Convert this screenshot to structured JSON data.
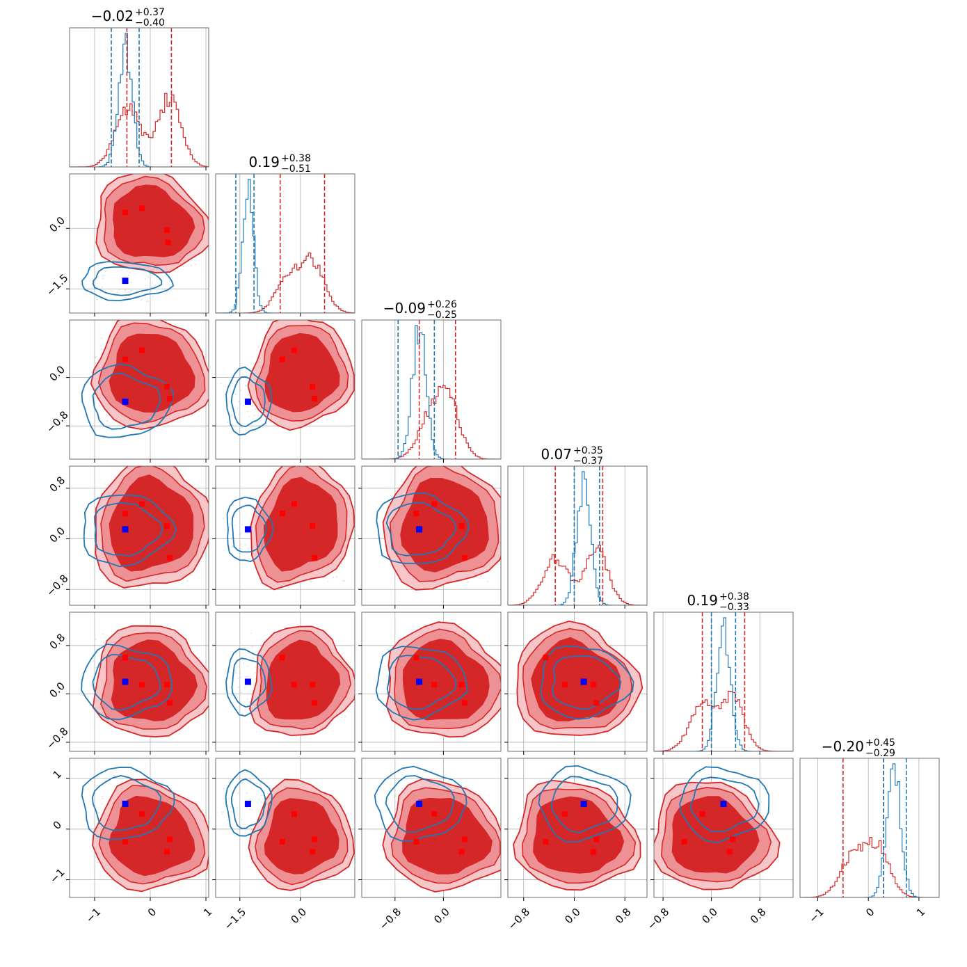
{
  "chart_data": {
    "type": "corner",
    "parameters": 6,
    "grid": true,
    "colors": {
      "primary": "#d62728",
      "secondary": "#1f77b4",
      "primary_marker": "#ff0000",
      "secondary_marker": "#0000ff"
    },
    "titles": [
      {
        "median": "−0.02",
        "plus": "+0.37",
        "minus": "−0.40"
      },
      {
        "median": "0.19",
        "plus": "+0.38",
        "minus": "−0.51"
      },
      {
        "median": "−0.09",
        "plus": "+0.26",
        "minus": "−0.25"
      },
      {
        "median": "0.07",
        "plus": "+0.35",
        "minus": "−0.37"
      },
      {
        "median": "0.19",
        "plus": "+0.38",
        "minus": "−0.33"
      },
      {
        "median": "−0.20",
        "plus": "+0.45",
        "minus": "−0.29"
      }
    ],
    "ranges": [
      [
        -1.45,
        1.05
      ],
      [
        -2.1,
        1.35
      ],
      [
        -1.35,
        0.95
      ],
      [
        -1.05,
        1.15
      ],
      [
        -0.95,
        1.35
      ],
      [
        -1.35,
        1.4
      ]
    ],
    "ticks": [
      [
        {
          "v": -1,
          "label": "−1"
        },
        {
          "v": 0,
          "label": "0"
        },
        {
          "v": 1,
          "label": "1"
        }
      ],
      [
        {
          "v": -1.5,
          "label": "−1.5"
        },
        {
          "v": 0,
          "label": "0.0"
        }
      ],
      [
        {
          "v": -0.8,
          "label": "−0.8"
        },
        {
          "v": 0,
          "label": "0.0"
        }
      ],
      [
        {
          "v": -0.8,
          "label": "−0.8"
        },
        {
          "v": 0,
          "label": "0.0"
        },
        {
          "v": 0.8,
          "label": "0.8"
        }
      ],
      [
        {
          "v": -0.8,
          "label": "−0.8"
        },
        {
          "v": 0,
          "label": "0.0"
        },
        {
          "v": 0.8,
          "label": "0.8"
        }
      ],
      [
        {
          "v": -1,
          "label": "−1"
        },
        {
          "v": 0,
          "label": "0"
        },
        {
          "v": 1,
          "label": "1"
        }
      ]
    ],
    "primary_modes": [
      [
        [
          -0.45,
          0.4
        ],
        [
          -0.15,
          0.5
        ],
        [
          0.3,
          -0.05
        ],
        [
          0.32,
          -0.35
        ]
      ],
      [
        [
          -0.45,
          0.3
        ],
        [
          -0.15,
          0.45
        ],
        [
          0.3,
          -0.15
        ],
        [
          0.35,
          -0.35
        ]
      ],
      [
        [
          -0.45,
          0.4
        ],
        [
          -0.15,
          0.55
        ],
        [
          0.3,
          0.2
        ],
        [
          0.35,
          -0.3
        ]
      ],
      [
        [
          -0.45,
          0.6
        ],
        [
          -0.15,
          0.15
        ],
        [
          0.3,
          0.15
        ],
        [
          0.35,
          -0.15
        ]
      ],
      [
        [
          -0.45,
          -0.25
        ],
        [
          -0.15,
          0.3
        ],
        [
          0.3,
          -0.45
        ],
        [
          0.35,
          -0.2
        ]
      ]
    ],
    "secondary_center": [
      -0.45,
      -1.3,
      -0.4,
      0.15,
      0.2,
      0.5
    ],
    "primary_hist_peaks": [
      [
        -0.4,
        0.35
      ],
      [
        -0.25,
        0.35
      ],
      [
        -0.2,
        0.1
      ],
      [
        -0.3,
        0.35
      ],
      [
        -0.15,
        0.35
      ],
      [
        -0.3,
        0.2
      ]
    ],
    "primary_quantiles": [
      [
        -0.42,
        0.38
      ],
      [
        -0.5,
        0.6
      ],
      [
        -0.4,
        0.2
      ],
      [
        -0.3,
        0.45
      ],
      [
        -0.15,
        0.55
      ],
      [
        -0.5,
        0.3
      ]
    ],
    "secondary_quantiles": [
      [
        -0.7,
        -0.2
      ],
      [
        -1.6,
        -1.15
      ],
      [
        -0.75,
        -0.15
      ],
      [
        0.0,
        0.4
      ],
      [
        0.0,
        0.4
      ],
      [
        0.3,
        0.75
      ]
    ]
  }
}
